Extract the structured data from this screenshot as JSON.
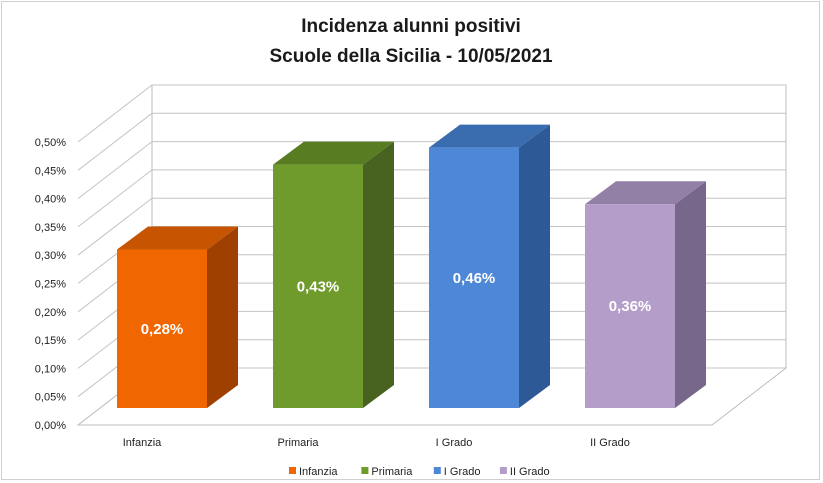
{
  "chart_data": {
    "type": "bar",
    "title": "Incidenza alunni positivi",
    "subtitle": "Scuole della Sicilia - 10/05/2021",
    "categories": [
      "Infanzia",
      "Primaria",
      "I Grado",
      "II Grado"
    ],
    "values": [
      0.28,
      0.43,
      0.46,
      0.36
    ],
    "value_labels": [
      "0,28%",
      "0,43%",
      "0,46%",
      "0,36%"
    ],
    "colors": [
      "#f06600",
      "#6f9a2c",
      "#4d87d6",
      "#b59dca"
    ],
    "side_colors": [
      "#a04000",
      "#486320",
      "#2d5a96",
      "#77678a"
    ],
    "top_colors": [
      "#c65400",
      "#587c22",
      "#3a6cb0",
      "#9380a7"
    ],
    "ylim": [
      0,
      0.5
    ],
    "yticks": [
      "0,00%",
      "0,05%",
      "0,10%",
      "0,15%",
      "0,20%",
      "0,25%",
      "0,30%",
      "0,35%",
      "0,40%",
      "0,45%",
      "0,50%"
    ],
    "grid": true,
    "legend": "bottom",
    "legend_entries": [
      "Infanzia",
      "Primaria",
      "I Grado",
      "II Grado"
    ],
    "style": "3d-column"
  }
}
